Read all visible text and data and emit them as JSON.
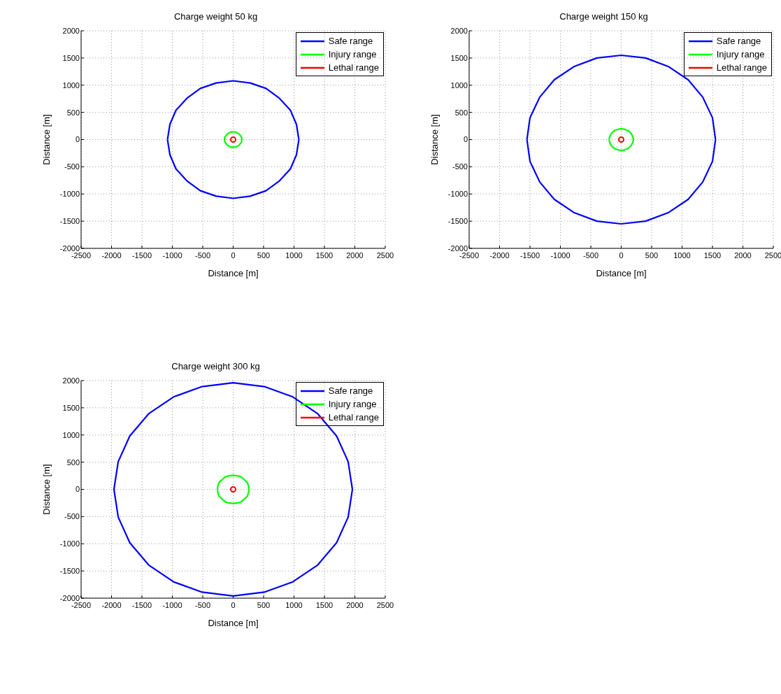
{
  "chart_data": [
    {
      "type": "line",
      "title": "Charge weight 50 kg",
      "xlabel": "Distance [m]",
      "ylabel": "Distance [m]",
      "xlim": [
        -2500,
        2500
      ],
      "ylim": [
        -2000,
        2000
      ],
      "xticks": [
        -2500,
        -2000,
        -1500,
        -1000,
        -500,
        0,
        500,
        1000,
        1500,
        2000,
        2500
      ],
      "yticks": [
        -2000,
        -1500,
        -1000,
        -500,
        0,
        500,
        1000,
        1500,
        2000
      ],
      "grid": true,
      "legend": "top right",
      "line_style": "solid",
      "marker": "none",
      "series": [
        {
          "name": "Safe range",
          "color": "#0000ff",
          "x": [
            -1080,
            -1040,
            -940,
            -760,
            -540,
            -280,
            0,
            280,
            540,
            760,
            940,
            1040,
            1080,
            null,
            1080,
            1040,
            940,
            760,
            540,
            280,
            0,
            -280,
            -540,
            -760,
            -940,
            -1040,
            -1080
          ],
          "values": [
            0,
            280,
            540,
            760,
            940,
            1040,
            1080,
            1040,
            940,
            760,
            540,
            280,
            0,
            null,
            0,
            -280,
            -540,
            -760,
            -940,
            -1040,
            -1080,
            -1040,
            -940,
            -760,
            -540,
            -280,
            0
          ]
        },
        {
          "name": "Injury range",
          "color": "#00ff00",
          "x": [
            -140,
            -140,
            -120,
            -100,
            -70,
            -40,
            0,
            40,
            70,
            100,
            120,
            140,
            140,
            null,
            140,
            140,
            120,
            100,
            70,
            40,
            0,
            -40,
            -70,
            -100,
            -120,
            -140,
            -140
          ],
          "values": [
            0,
            40,
            70,
            100,
            120,
            140,
            140,
            140,
            120,
            100,
            70,
            40,
            0,
            null,
            0,
            -40,
            -70,
            -100,
            -120,
            -140,
            -140,
            -140,
            -120,
            -100,
            -70,
            -40,
            0
          ]
        },
        {
          "name": "Lethal range",
          "color": "#ff0000",
          "type": "scatter",
          "marker": "circle",
          "x": [
            0
          ],
          "values": [
            0
          ]
        }
      ]
    },
    {
      "type": "line",
      "title": "Charge weight 150 kg",
      "xlabel": "Distance [m]",
      "ylabel": "Distance [m]",
      "xlim": [
        -2500,
        2500
      ],
      "ylim": [
        -2000,
        2000
      ],
      "xticks": [
        -2500,
        -2000,
        -1500,
        -1000,
        -500,
        0,
        500,
        1000,
        1500,
        2000,
        2500
      ],
      "yticks": [
        -2000,
        -1500,
        -1000,
        -500,
        0,
        500,
        1000,
        1500,
        2000
      ],
      "grid": true,
      "legend": "top right",
      "line_style": "solid",
      "marker": "none",
      "series": [
        {
          "name": "Safe range",
          "color": "#0000ff",
          "x": [
            -1550,
            -1500,
            -1340,
            -1100,
            -780,
            -400,
            0,
            400,
            780,
            1100,
            1340,
            1500,
            1550,
            null,
            1550,
            1500,
            1340,
            1100,
            780,
            400,
            0,
            -400,
            -780,
            -1100,
            -1340,
            -1500,
            -1550
          ],
          "values": [
            0,
            400,
            780,
            1100,
            1340,
            1500,
            1550,
            1500,
            1340,
            1100,
            780,
            400,
            0,
            null,
            0,
            -400,
            -780,
            -1100,
            -1340,
            -1500,
            -1550,
            -1500,
            -1340,
            -1100,
            -780,
            -400,
            0
          ]
        },
        {
          "name": "Injury range",
          "color": "#00ff00",
          "x": [
            -200,
            -190,
            -170,
            -140,
            -100,
            -50,
            0,
            50,
            100,
            140,
            170,
            190,
            200,
            null,
            200,
            190,
            170,
            140,
            100,
            50,
            0,
            -50,
            -100,
            -140,
            -170,
            -190,
            -200
          ],
          "values": [
            0,
            50,
            100,
            140,
            170,
            190,
            200,
            190,
            170,
            140,
            100,
            50,
            0,
            null,
            0,
            -50,
            -100,
            -140,
            -170,
            -190,
            -200,
            -190,
            -170,
            -140,
            -100,
            -50,
            0
          ]
        },
        {
          "name": "Lethal range",
          "color": "#ff0000",
          "type": "scatter",
          "marker": "circle",
          "x": [
            0
          ],
          "values": [
            0
          ]
        }
      ]
    },
    {
      "type": "line",
      "title": "Charge weight 300 kg",
      "xlabel": "Distance [m]",
      "ylabel": "Distance [m]",
      "xlim": [
        -2500,
        2500
      ],
      "ylim": [
        -2000,
        2000
      ],
      "xticks": [
        -2500,
        -2000,
        -1500,
        -1000,
        -500,
        0,
        500,
        1000,
        1500,
        2000,
        2500
      ],
      "yticks": [
        -2000,
        -1500,
        -1000,
        -500,
        0,
        500,
        1000,
        1500,
        2000
      ],
      "grid": true,
      "legend": "top right",
      "line_style": "solid",
      "marker": "none",
      "series": [
        {
          "name": "Safe range",
          "color": "#0000ff",
          "x": [
            -1960,
            -1890,
            -1700,
            -1390,
            -980,
            -510,
            0,
            510,
            980,
            1390,
            1700,
            1890,
            1960,
            null,
            1960,
            1890,
            1700,
            1390,
            980,
            510,
            0,
            -510,
            -980,
            -1390,
            -1700,
            -1890,
            -1960
          ],
          "values": [
            0,
            510,
            980,
            1390,
            1700,
            1890,
            1960,
            1890,
            1700,
            1390,
            980,
            510,
            0,
            null,
            0,
            -510,
            -980,
            -1390,
            -1700,
            -1890,
            -1960,
            -1890,
            -1700,
            -1390,
            -980,
            -510,
            0
          ]
        },
        {
          "name": "Injury range",
          "color": "#00ff00",
          "x": [
            -260,
            -250,
            -230,
            -180,
            -130,
            -70,
            0,
            70,
            130,
            180,
            230,
            250,
            260,
            null,
            260,
            250,
            230,
            180,
            130,
            70,
            0,
            -70,
            -130,
            -180,
            -230,
            -250,
            -260
          ],
          "values": [
            0,
            70,
            130,
            180,
            230,
            250,
            260,
            250,
            230,
            180,
            130,
            70,
            0,
            null,
            0,
            -70,
            -130,
            -180,
            -230,
            -250,
            -260,
            -250,
            -230,
            -180,
            -130,
            -70,
            0
          ]
        },
        {
          "name": "Lethal range",
          "color": "#ff0000",
          "type": "scatter",
          "marker": "circle",
          "x": [
            0
          ],
          "values": [
            0
          ]
        }
      ]
    }
  ]
}
